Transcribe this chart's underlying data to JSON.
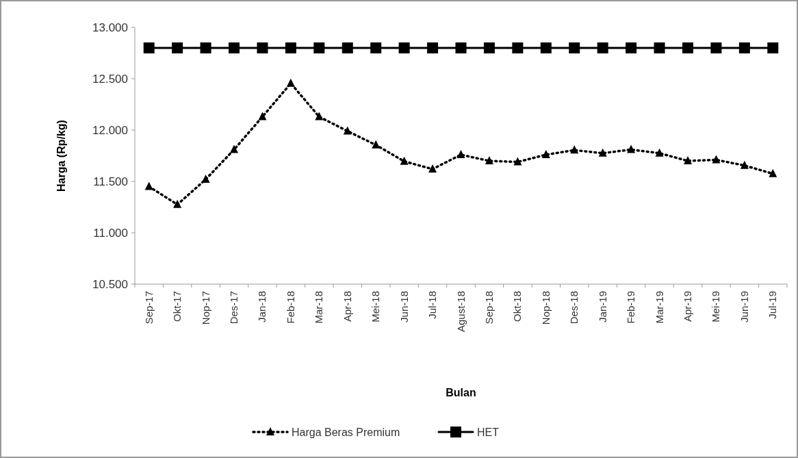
{
  "chart_data": {
    "type": "line",
    "xlabel": "Bulan",
    "ylabel": "Harga (Rp/kg)",
    "categories": [
      "Sep-17",
      "Okt-17",
      "Nop-17",
      "Des-17",
      "Jan-18",
      "Feb-18",
      "Mar-18",
      "Apr-18",
      "Mei-18",
      "Jun-18",
      "Jul-18",
      "Agust-18",
      "Sep-18",
      "Okt-18",
      "Nop-18",
      "Des-18",
      "Jan-19",
      "Feb-19",
      "Mar-19",
      "Apr-19",
      "Mei-19",
      "Jun-19",
      "Jul-19"
    ],
    "series": [
      {
        "name": "Harga Beras Premium",
        "color": "#000000",
        "marker": "triangle",
        "line_style": "dotted",
        "values": [
          11450,
          11275,
          11520,
          11810,
          12130,
          12455,
          12130,
          11990,
          11855,
          11695,
          11620,
          11760,
          11700,
          11690,
          11760,
          11805,
          11775,
          11810,
          11775,
          11700,
          11710,
          11655,
          11575
        ]
      },
      {
        "name": "HET",
        "color": "#000000",
        "marker": "square",
        "line_style": "solid",
        "values": [
          12800,
          12800,
          12800,
          12800,
          12800,
          12800,
          12800,
          12800,
          12800,
          12800,
          12800,
          12800,
          12800,
          12800,
          12800,
          12800,
          12800,
          12800,
          12800,
          12800,
          12800,
          12800,
          12800
        ]
      }
    ],
    "ylim": [
      10500,
      13000
    ],
    "yticks": [
      {
        "value": 10500,
        "label": "10.500"
      },
      {
        "value": 11000,
        "label": "11.000"
      },
      {
        "value": 11500,
        "label": "11.500"
      },
      {
        "value": 12000,
        "label": "12.000"
      },
      {
        "value": 12500,
        "label": "12.500"
      },
      {
        "value": 13000,
        "label": "13.000"
      }
    ],
    "grid": false,
    "legend": "bottom"
  }
}
